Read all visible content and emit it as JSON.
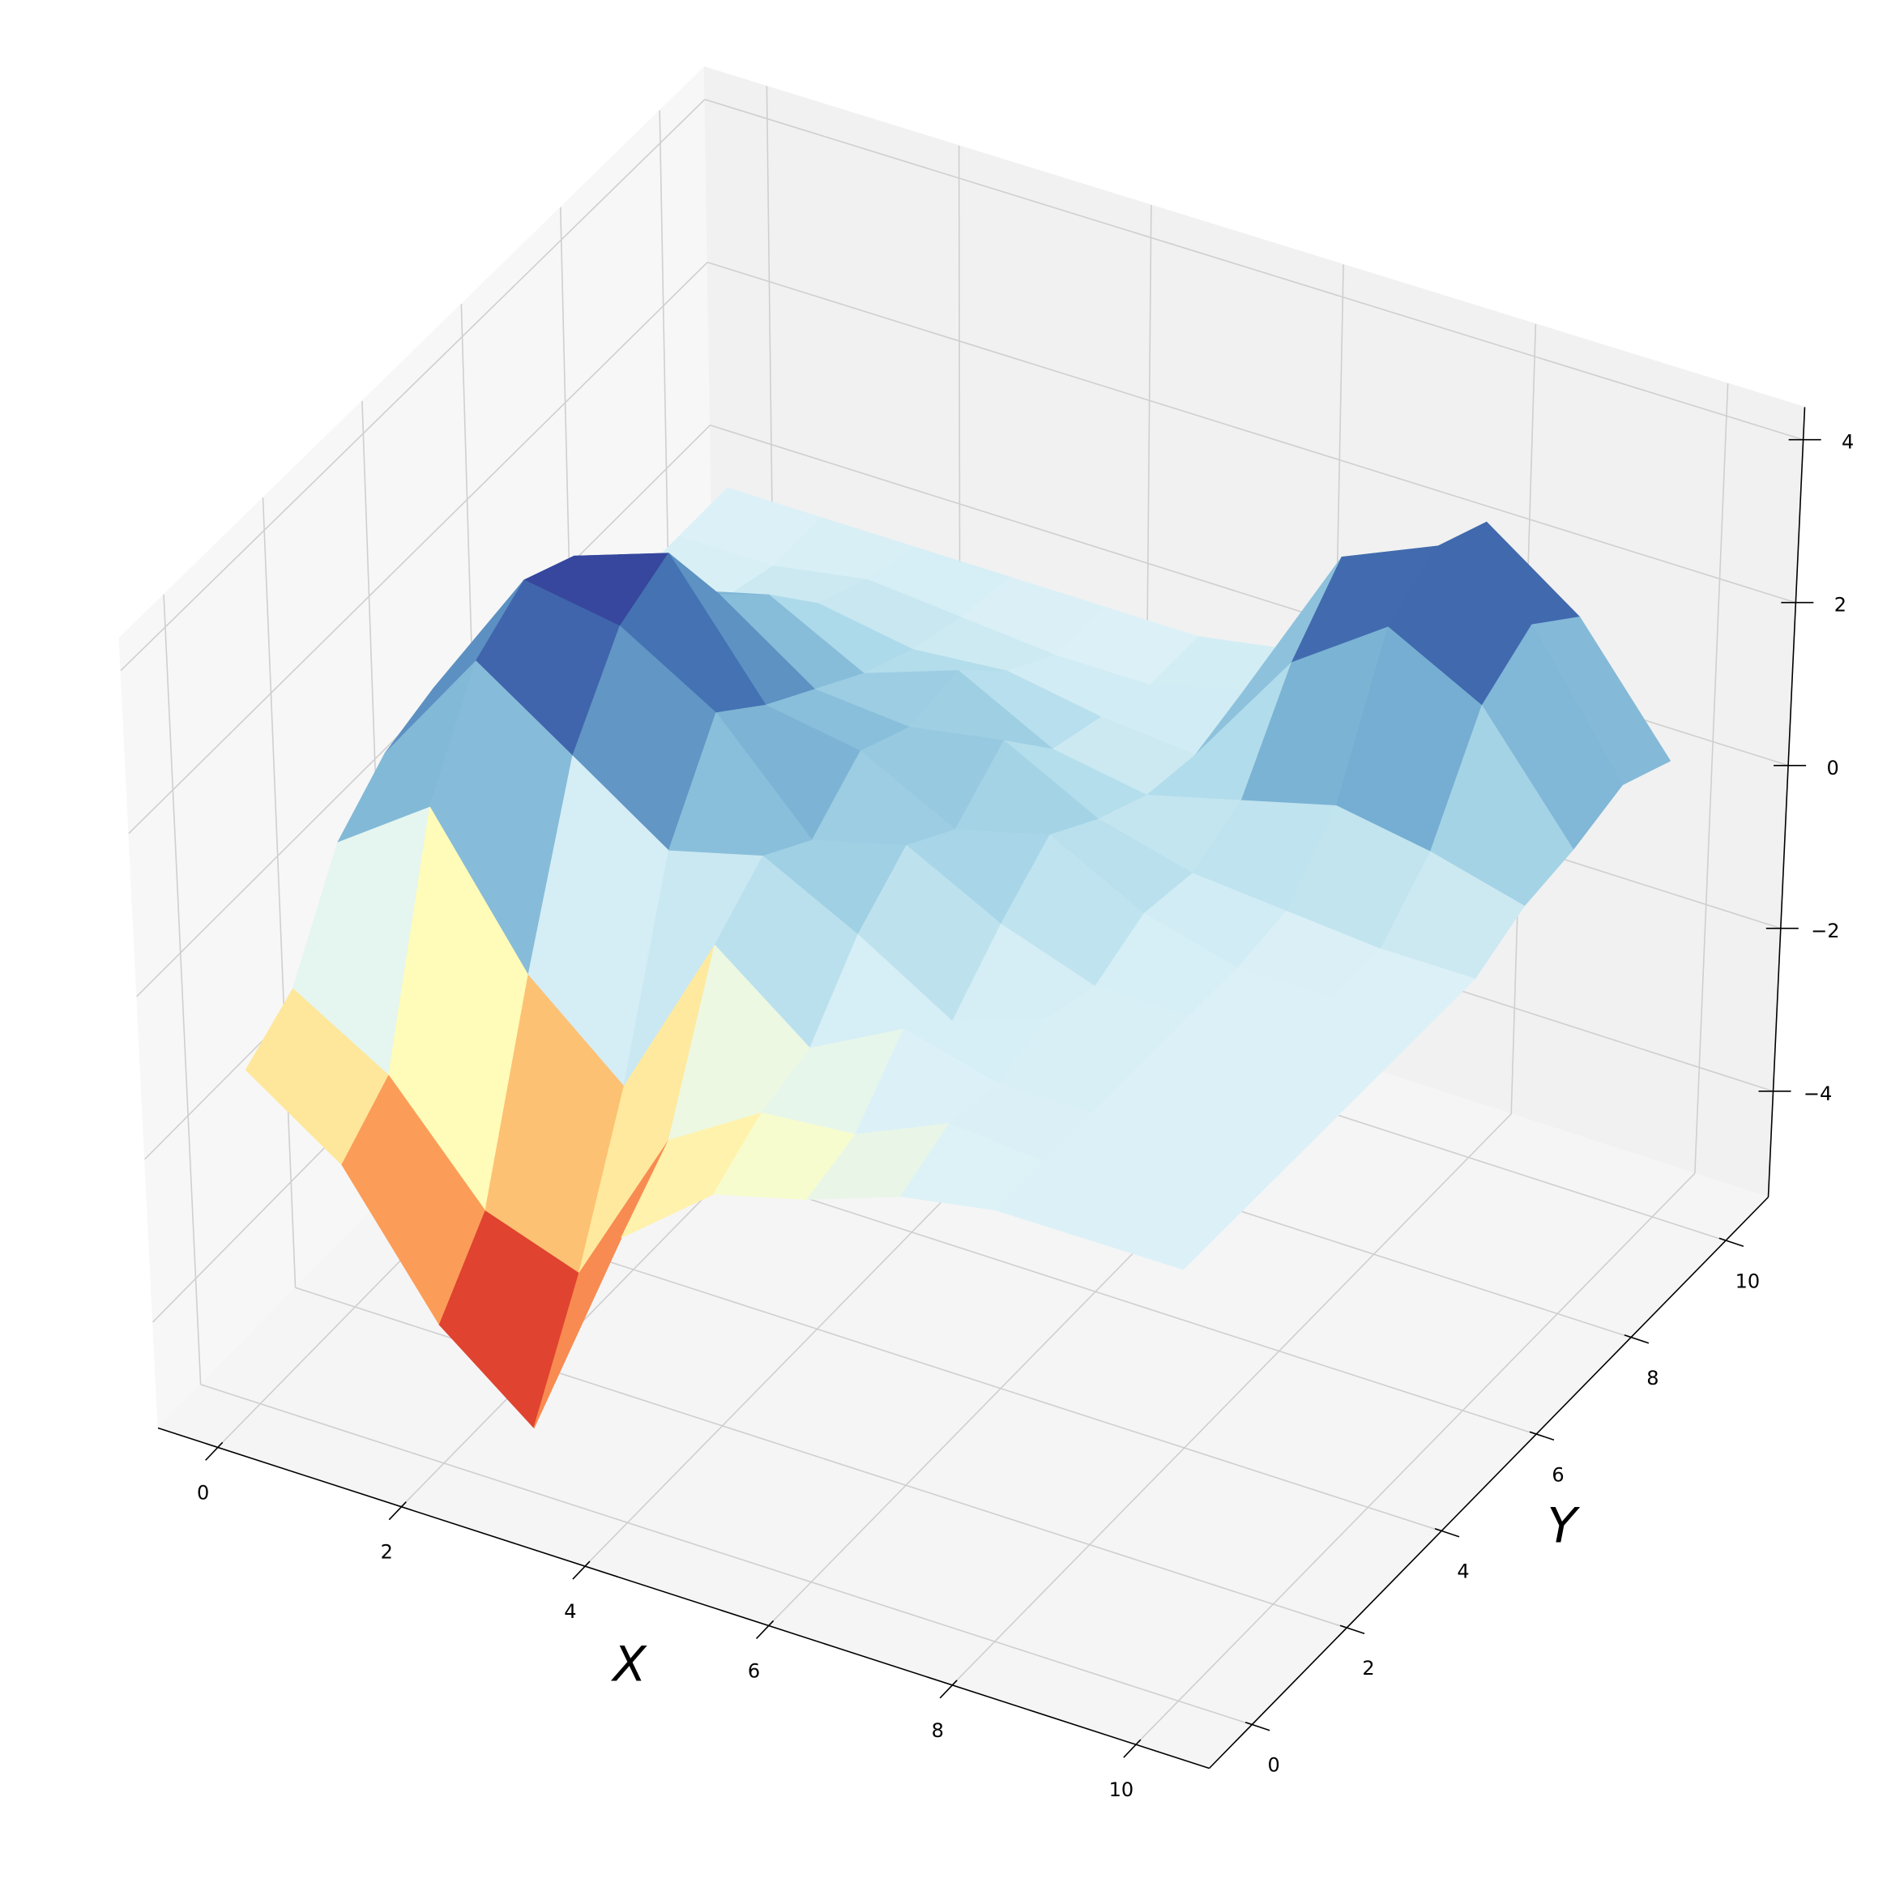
{
  "chart_data": {
    "type": "surface",
    "xlabel": "X",
    "ylabel": "Y",
    "x": [
      0,
      1,
      2,
      3,
      4,
      5,
      6,
      7,
      8,
      9,
      10
    ],
    "y": [
      0,
      1,
      2,
      3,
      4,
      5,
      6,
      7,
      8,
      9,
      10
    ],
    "z": [
      [
        -1.2,
        -2.0,
        -3.6,
        -4.5,
        -1.8,
        -0.9,
        -0.6,
        -0.2,
        0,
        0,
        0
      ],
      [
        -0.8,
        -1.5,
        -2.8,
        -3.2,
        -1.2,
        -0.5,
        -0.4,
        0.1,
        0,
        0,
        0
      ],
      [
        0.4,
        1.2,
        -0.5,
        -1.5,
        0.6,
        -0.3,
        0.3,
        0,
        0,
        0,
        0
      ],
      [
        0.9,
        2.4,
        1.6,
        0.8,
        1.1,
        0.5,
        -0.2,
        0.2,
        0,
        0,
        0
      ],
      [
        1.1,
        2.8,
        2.6,
        1.9,
        0.7,
        1.0,
        0.4,
        0,
        0,
        0,
        0
      ],
      [
        0.8,
        2.5,
        2.9,
        1.4,
        1.2,
        0.6,
        0.9,
        0.3,
        0,
        0,
        0
      ],
      [
        0.5,
        1.3,
        1.8,
        1.0,
        0.9,
        1.1,
        0.5,
        0.2,
        0.1,
        0,
        0
      ],
      [
        0.3,
        0.9,
        1.2,
        0.6,
        1.0,
        0.4,
        0.2,
        0.5,
        0.8,
        0.6,
        0.3
      ],
      [
        0,
        0.2,
        0.5,
        0.3,
        0.4,
        0.2,
        0.1,
        1.6,
        2.4,
        1.8,
        0.4
      ],
      [
        0,
        0,
        0.2,
        0.1,
        0,
        0,
        0.3,
        2.3,
        2.8,
        2.2,
        0.6
      ],
      [
        0,
        0,
        0,
        0,
        0,
        0,
        0.2,
        1.5,
        2.5,
        1.7,
        0.3
      ]
    ],
    "xlim": [
      -0.65,
      10.8
    ],
    "ylim": [
      -0.9,
      10.9
    ],
    "zlim": [
      -5.3,
      4.4
    ],
    "xticks": [
      0,
      2,
      4,
      6,
      8,
      10
    ],
    "yticks": [
      0,
      2,
      4,
      6,
      8,
      10
    ],
    "zticks": [
      {
        "value": -4,
        "label": "−4"
      },
      {
        "value": -2,
        "label": "−2"
      },
      0,
      2,
      4
    ],
    "colormap": [
      "#a50026",
      "#d73027",
      "#f46d43",
      "#fdae61",
      "#fee090",
      "#ffffbf",
      "#e0f3f8",
      "#abd9e9",
      "#74add1",
      "#4575b4",
      "#313695"
    ],
    "grid": true
  }
}
